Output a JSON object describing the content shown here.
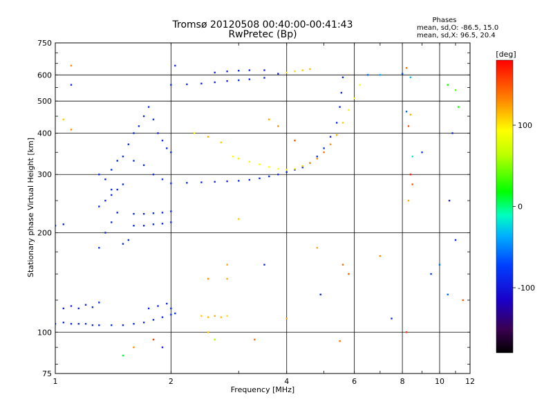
{
  "chart_data": {
    "type": "scatter",
    "title": "Tromsø 20120508 00:40:00-00:41:43",
    "subtitle": "RwPretec (Bp)",
    "xlabel": "Frequency [MHz]",
    "ylabel": "Stationary phase Virtual Height [km]",
    "x_scale": "log",
    "y_scale": "log",
    "xlim": [
      1,
      12
    ],
    "ylim": [
      75,
      750
    ],
    "x_ticks": [
      1,
      2,
      4,
      6,
      8,
      10,
      12
    ],
    "x_tick_labels": [
      "1",
      "2",
      "4",
      "6",
      "8",
      "10",
      "12"
    ],
    "y_ticks": [
      75,
      100,
      200,
      300,
      400,
      500,
      600,
      750
    ],
    "y_tick_labels": [
      "75",
      "100",
      "200",
      "300",
      "400",
      "500",
      "600",
      "750"
    ],
    "grid": true,
    "phases": {
      "heading": "Phases",
      "line_o": "mean, sd,O: -86.5, 15.0",
      "line_x": "mean, sd,X: 96.5, 20.4"
    },
    "colorbar": {
      "label": "[deg]",
      "range": [
        -180,
        180
      ],
      "ticks": [
        100,
        0,
        -100
      ],
      "tick_labels": [
        "100",
        "0",
        "-100"
      ]
    },
    "series": [
      {
        "id": "e-layer",
        "points": [
          [
            1.0,
            106,
            -90
          ],
          [
            1.05,
            107,
            -88
          ],
          [
            1.1,
            106,
            -90
          ],
          [
            1.15,
            106,
            -92
          ],
          [
            1.2,
            106,
            -85
          ],
          [
            1.25,
            105,
            -88
          ],
          [
            1.3,
            105,
            -90
          ],
          [
            1.4,
            105,
            -87
          ],
          [
            1.5,
            105,
            -89
          ],
          [
            1.6,
            106,
            -88
          ],
          [
            1.7,
            107,
            -86
          ],
          [
            1.8,
            109,
            -88
          ],
          [
            1.9,
            111,
            -90
          ],
          [
            2.0,
            113,
            -85
          ],
          [
            2.05,
            114,
            -87
          ]
        ]
      },
      {
        "id": "e-upper",
        "points": [
          [
            1.05,
            118,
            -90
          ],
          [
            1.1,
            120,
            -95
          ],
          [
            1.15,
            118,
            -88
          ],
          [
            1.2,
            121,
            -92
          ],
          [
            1.25,
            119,
            -90
          ],
          [
            1.3,
            123,
            -86
          ],
          [
            1.75,
            118,
            -90
          ],
          [
            1.85,
            120,
            -88
          ],
          [
            1.95,
            122,
            -92
          ],
          [
            2.0,
            118,
            -86
          ]
        ]
      },
      {
        "id": "es-yellow",
        "points": [
          [
            2.4,
            112,
            110
          ],
          [
            2.5,
            111,
            115
          ],
          [
            2.6,
            112,
            118
          ],
          [
            2.7,
            111,
            112
          ],
          [
            2.8,
            112,
            105
          ]
        ]
      },
      {
        "id": "f1-lower",
        "points": [
          [
            1.3,
            180,
            -85
          ],
          [
            1.35,
            200,
            -88
          ],
          [
            1.4,
            215,
            -90
          ],
          [
            1.45,
            230,
            -92
          ],
          [
            1.3,
            240,
            -88
          ],
          [
            1.35,
            250,
            -86
          ],
          [
            1.4,
            260,
            -90
          ],
          [
            1.45,
            270,
            -92
          ],
          [
            1.5,
            185,
            -88
          ],
          [
            1.55,
            190,
            -90
          ],
          [
            1.6,
            210,
            -87
          ],
          [
            1.7,
            210,
            -89
          ],
          [
            1.8,
            212,
            -88
          ],
          [
            1.9,
            213,
            -90
          ],
          [
            2.0,
            215,
            -88
          ],
          [
            1.6,
            228,
            -90
          ],
          [
            1.7,
            228,
            -92
          ],
          [
            1.8,
            229,
            -88
          ],
          [
            1.9,
            230,
            -90
          ],
          [
            2.0,
            232,
            -86
          ],
          [
            1.0,
            210,
            -88
          ],
          [
            1.05,
            212,
            -90
          ]
        ]
      },
      {
        "id": "f1-cloud",
        "points": [
          [
            1.3,
            300,
            -90
          ],
          [
            1.35,
            290,
            -92
          ],
          [
            1.4,
            310,
            -86
          ],
          [
            1.45,
            330,
            -90
          ],
          [
            1.5,
            340,
            -88
          ],
          [
            1.55,
            370,
            -90
          ],
          [
            1.6,
            400,
            -92
          ],
          [
            1.65,
            420,
            -88
          ],
          [
            1.7,
            450,
            -90
          ],
          [
            1.75,
            480,
            -86
          ],
          [
            1.8,
            440,
            -88
          ],
          [
            1.85,
            400,
            -92
          ],
          [
            1.9,
            380,
            -90
          ],
          [
            1.95,
            360,
            -88
          ],
          [
            2.0,
            350,
            -90
          ],
          [
            1.6,
            330,
            -88
          ],
          [
            1.7,
            320,
            -90
          ],
          [
            1.8,
            300,
            -92
          ],
          [
            1.9,
            290,
            -86
          ],
          [
            1.5,
            280,
            -90
          ],
          [
            1.4,
            270,
            -88
          ]
        ]
      },
      {
        "id": "f2-trace",
        "points": [
          [
            2.0,
            282,
            -88
          ],
          [
            2.2,
            283,
            -90
          ],
          [
            2.4,
            284,
            -92
          ],
          [
            2.6,
            285,
            -88
          ],
          [
            2.8,
            286,
            -90
          ],
          [
            3.0,
            287,
            -86
          ],
          [
            3.2,
            289,
            -88
          ],
          [
            3.4,
            292,
            -90
          ],
          [
            3.6,
            296,
            -92
          ],
          [
            3.8,
            300,
            -88
          ],
          [
            4.0,
            305,
            -90
          ],
          [
            4.2,
            310,
            -85
          ],
          [
            4.4,
            315,
            -88
          ],
          [
            4.6,
            325,
            -90
          ],
          [
            4.8,
            340,
            -86
          ],
          [
            5.0,
            360,
            -88
          ],
          [
            5.2,
            390,
            -90
          ],
          [
            5.4,
            430,
            -88
          ],
          [
            5.5,
            480,
            -90
          ],
          [
            5.55,
            530,
            -92
          ],
          [
            5.6,
            590,
            -88
          ]
        ]
      },
      {
        "id": "top-band",
        "points": [
          [
            2.0,
            560,
            -88
          ],
          [
            2.2,
            562,
            -90
          ],
          [
            2.4,
            565,
            -92
          ],
          [
            2.6,
            570,
            -88
          ],
          [
            2.8,
            575,
            -90
          ],
          [
            3.0,
            578,
            -86
          ],
          [
            3.2,
            582,
            -88
          ],
          [
            3.5,
            588,
            -90
          ],
          [
            2.6,
            610,
            -88
          ],
          [
            2.8,
            615,
            -90
          ],
          [
            3.0,
            618,
            -86
          ],
          [
            3.2,
            620,
            -88
          ],
          [
            3.5,
            620,
            -90
          ],
          [
            3.8,
            605,
            -92
          ]
        ]
      },
      {
        "id": "x-trace",
        "points": [
          [
            2.9,
            340,
            95
          ],
          [
            3.0,
            335,
            100
          ],
          [
            3.2,
            328,
            98
          ],
          [
            3.4,
            322,
            96
          ],
          [
            3.6,
            316,
            94
          ],
          [
            3.8,
            312,
            92
          ],
          [
            4.0,
            310,
            96
          ],
          [
            4.2,
            312,
            100
          ],
          [
            4.4,
            318,
            110
          ],
          [
            4.6,
            325,
            120
          ],
          [
            4.8,
            335,
            130
          ],
          [
            5.0,
            350,
            140
          ],
          [
            5.2,
            370,
            130
          ],
          [
            5.4,
            395,
            120
          ],
          [
            5.6,
            430,
            110
          ],
          [
            5.8,
            470,
            100
          ],
          [
            6.0,
            510,
            95
          ],
          [
            6.2,
            560,
            90
          ]
        ]
      },
      {
        "id": "x-top",
        "points": [
          [
            4.0,
            610,
            100
          ],
          [
            4.2,
            615,
            105
          ],
          [
            4.4,
            620,
            110
          ],
          [
            4.6,
            625,
            115
          ]
        ]
      },
      {
        "id": "scattered",
        "points": [
          [
            1.1,
            640,
            130
          ],
          [
            1.1,
            560,
            -90
          ],
          [
            1.05,
            440,
            110
          ],
          [
            1.1,
            410,
            130
          ],
          [
            2.05,
            640,
            -90
          ],
          [
            6.5,
            600,
            -60
          ],
          [
            7.0,
            600,
            -40
          ],
          [
            8.0,
            605,
            -70
          ],
          [
            8.2,
            630,
            140
          ],
          [
            8.4,
            590,
            -30
          ],
          [
            8.2,
            465,
            -60
          ],
          [
            8.4,
            455,
            120
          ],
          [
            8.3,
            420,
            150
          ],
          [
            8.5,
            340,
            -20
          ],
          [
            8.4,
            300,
            170
          ],
          [
            8.5,
            280,
            150
          ],
          [
            8.3,
            250,
            120
          ],
          [
            9.0,
            350,
            -80
          ],
          [
            9.5,
            150,
            -80
          ],
          [
            10.0,
            160,
            -60
          ],
          [
            10.5,
            560,
            20
          ],
          [
            11.0,
            540,
            40
          ],
          [
            11.2,
            480,
            20
          ],
          [
            10.8,
            400,
            -90
          ],
          [
            10.6,
            250,
            -100
          ],
          [
            11.0,
            190,
            -90
          ],
          [
            11.5,
            125,
            150
          ],
          [
            4.8,
            180,
            120
          ],
          [
            4.9,
            130,
            -90
          ],
          [
            5.6,
            160,
            140
          ],
          [
            5.8,
            150,
            150
          ],
          [
            7.5,
            110,
            -90
          ],
          [
            7.0,
            170,
            130
          ],
          [
            5.5,
            94,
            140
          ],
          [
            2.5,
            100,
            110
          ],
          [
            2.6,
            95,
            60
          ],
          [
            3.3,
            95,
            140
          ],
          [
            1.8,
            95,
            160
          ],
          [
            1.6,
            90,
            130
          ],
          [
            1.5,
            85,
            10
          ],
          [
            1.9,
            90,
            -100
          ],
          [
            2.5,
            145,
            130
          ],
          [
            2.8,
            145,
            120
          ],
          [
            3.0,
            220,
            110
          ],
          [
            2.8,
            160,
            120
          ],
          [
            3.5,
            160,
            -90
          ],
          [
            4.0,
            110,
            120
          ],
          [
            8.2,
            100,
            160
          ],
          [
            10.5,
            130,
            -60
          ],
          [
            3.6,
            440,
            120
          ],
          [
            3.8,
            420,
            130
          ],
          [
            4.2,
            380,
            150
          ],
          [
            2.7,
            375,
            110
          ],
          [
            2.5,
            390,
            120
          ],
          [
            2.3,
            400,
            100
          ]
        ]
      }
    ]
  }
}
